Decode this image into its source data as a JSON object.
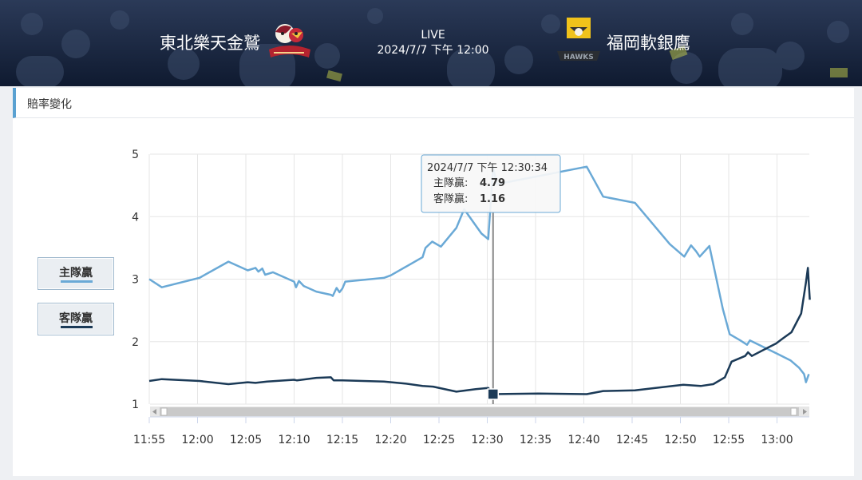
{
  "header": {
    "home_team": "東北樂天金鷲",
    "away_team": "福岡軟銀鷹",
    "status": "LIVE",
    "datetime": "2024/7/7 下午 12:00",
    "home_logo_icon": "rakuten-eagles-logo-icon",
    "away_logo_icon": "softbank-hawks-logo-icon"
  },
  "section": {
    "title": "賠率變化"
  },
  "legend": [
    {
      "label": "主隊贏",
      "color": "#6aa9d6"
    },
    {
      "label": "客隊贏",
      "color": "#1b3a57"
    }
  ],
  "tooltip": {
    "time": "2024/7/7 下午 12:30:34",
    "rows": [
      {
        "label": "主隊贏:",
        "value": "4.79"
      },
      {
        "label": "客隊贏:",
        "value": "1.16"
      }
    ]
  },
  "chart_data": {
    "type": "line",
    "x_ticks": [
      "11:55",
      "12:00",
      "12:05",
      "12:10",
      "12:15",
      "12:20",
      "12:25",
      "12:30",
      "12:35",
      "12:40",
      "12:45",
      "12:50",
      "12:55",
      "13:00"
    ],
    "y_ticks": [
      "1",
      "2",
      "3",
      "4",
      "5"
    ],
    "ylim": [
      1,
      5
    ],
    "xlim_minutes": [
      0,
      68
    ],
    "grid": true,
    "crosshair_time_minutes": 35.6,
    "series": [
      {
        "name": "主隊贏",
        "color": "#6aa9d6",
        "points": [
          [
            0,
            3.0
          ],
          [
            1.3,
            2.87
          ],
          [
            5.2,
            3.02
          ],
          [
            8.2,
            3.28
          ],
          [
            10.2,
            3.14
          ],
          [
            11.0,
            3.18
          ],
          [
            11.3,
            3.12
          ],
          [
            11.7,
            3.17
          ],
          [
            12.0,
            3.07
          ],
          [
            12.8,
            3.11
          ],
          [
            15.0,
            2.96
          ],
          [
            15.2,
            2.87
          ],
          [
            15.5,
            2.97
          ],
          [
            16.0,
            2.89
          ],
          [
            17.3,
            2.8
          ],
          [
            18.8,
            2.75
          ],
          [
            19.0,
            2.73
          ],
          [
            19.4,
            2.86
          ],
          [
            19.7,
            2.79
          ],
          [
            20.0,
            2.85
          ],
          [
            20.3,
            2.96
          ],
          [
            24.3,
            3.02
          ],
          [
            25.0,
            3.06
          ],
          [
            28.3,
            3.35
          ],
          [
            28.6,
            3.5
          ],
          [
            29.3,
            3.6
          ],
          [
            30.2,
            3.52
          ],
          [
            31.8,
            3.82
          ],
          [
            32.6,
            4.12
          ],
          [
            33.7,
            3.88
          ],
          [
            34.4,
            3.73
          ],
          [
            35.1,
            3.64
          ],
          [
            35.6,
            4.79
          ],
          [
            36.0,
            4.52
          ],
          [
            45.3,
            4.8
          ],
          [
            47.0,
            4.32
          ],
          [
            50.3,
            4.22
          ],
          [
            53.9,
            3.56
          ],
          [
            55.4,
            3.36
          ],
          [
            56.1,
            3.54
          ],
          [
            56.6,
            3.45
          ],
          [
            57.0,
            3.36
          ],
          [
            58.0,
            3.53
          ],
          [
            59.4,
            2.52
          ],
          [
            60.1,
            2.12
          ],
          [
            61.2,
            2.02
          ],
          [
            61.9,
            1.95
          ],
          [
            62.2,
            2.02
          ],
          [
            65.1,
            1.8
          ],
          [
            66.4,
            1.7
          ],
          [
            67.3,
            1.58
          ],
          [
            67.8,
            1.48
          ],
          [
            68.0,
            1.35
          ],
          [
            68.3,
            1.48
          ]
        ]
      },
      {
        "name": "客隊贏",
        "color": "#1b3a57",
        "points": [
          [
            0,
            1.37
          ],
          [
            1.3,
            1.4
          ],
          [
            5.2,
            1.37
          ],
          [
            8.2,
            1.32
          ],
          [
            10.2,
            1.35
          ],
          [
            11.0,
            1.34
          ],
          [
            12.2,
            1.36
          ],
          [
            15.0,
            1.39
          ],
          [
            15.3,
            1.38
          ],
          [
            17.3,
            1.42
          ],
          [
            18.8,
            1.43
          ],
          [
            19.1,
            1.38
          ],
          [
            20.0,
            1.38
          ],
          [
            24.3,
            1.36
          ],
          [
            26.5,
            1.33
          ],
          [
            28.3,
            1.29
          ],
          [
            29.4,
            1.28
          ],
          [
            31.8,
            1.2
          ],
          [
            33.8,
            1.24
          ],
          [
            35.1,
            1.26
          ],
          [
            35.6,
            1.16
          ],
          [
            40.3,
            1.17
          ],
          [
            45.3,
            1.16
          ],
          [
            47.0,
            1.21
          ],
          [
            50.3,
            1.22
          ],
          [
            54.2,
            1.29
          ],
          [
            55.3,
            1.31
          ],
          [
            56.2,
            1.3
          ],
          [
            57.1,
            1.29
          ],
          [
            58.4,
            1.32
          ],
          [
            59.6,
            1.43
          ],
          [
            60.3,
            1.68
          ],
          [
            61.7,
            1.77
          ],
          [
            62.0,
            1.83
          ],
          [
            62.4,
            1.77
          ],
          [
            64.0,
            1.9
          ],
          [
            64.9,
            1.97
          ],
          [
            65.6,
            2.05
          ],
          [
            66.5,
            2.15
          ],
          [
            67.5,
            2.45
          ],
          [
            68.0,
            2.95
          ],
          [
            68.2,
            3.18
          ],
          [
            68.4,
            2.67
          ]
        ]
      }
    ]
  }
}
